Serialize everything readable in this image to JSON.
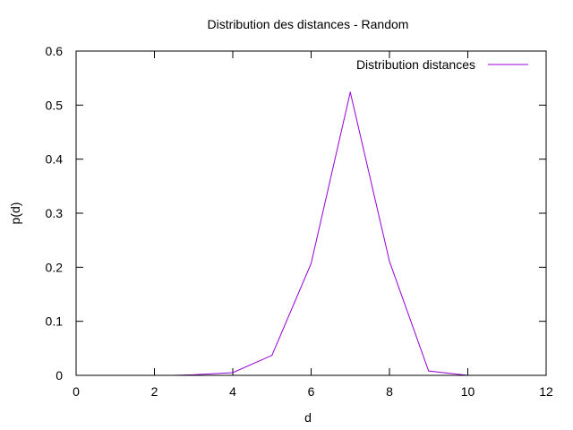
{
  "chart_data": {
    "type": "line",
    "title": "Distribution des distances - Random",
    "xlabel": "d",
    "ylabel": "p(d)",
    "xlim": [
      0,
      12
    ],
    "ylim": [
      0,
      0.6
    ],
    "xticks": [
      0,
      2,
      4,
      6,
      8,
      10,
      12
    ],
    "yticks": [
      0,
      0.1,
      0.2,
      0.3,
      0.4,
      0.5,
      0.6
    ],
    "grid": false,
    "legend": {
      "position": "top-right"
    },
    "series": [
      {
        "name": "Distribution distances",
        "color": "#9400d3",
        "x": [
          2.5,
          3,
          4,
          5,
          6,
          7,
          8,
          9,
          10
        ],
        "y": [
          0.0,
          0.001,
          0.005,
          0.037,
          0.207,
          0.524,
          0.211,
          0.008,
          0.0
        ]
      }
    ]
  }
}
